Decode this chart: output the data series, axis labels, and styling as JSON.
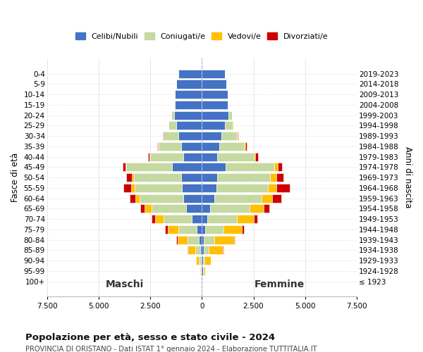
{
  "age_groups": [
    "0-4",
    "5-9",
    "10-14",
    "15-19",
    "20-24",
    "25-29",
    "30-34",
    "35-39",
    "40-44",
    "45-49",
    "50-54",
    "55-59",
    "60-64",
    "65-69",
    "70-74",
    "75-79",
    "80-84",
    "85-89",
    "90-94",
    "95-99",
    "100+"
  ],
  "birth_years": [
    "2019-2023",
    "2014-2018",
    "2009-2013",
    "2004-2008",
    "1999-2003",
    "1994-1998",
    "1989-1993",
    "1984-1988",
    "1979-1983",
    "1974-1978",
    "1969-1973",
    "1964-1968",
    "1959-1963",
    "1954-1958",
    "1949-1953",
    "1944-1948",
    "1939-1943",
    "1934-1938",
    "1929-1933",
    "1924-1928",
    "≤ 1923"
  ],
  "colors": {
    "celibi": "#4472c4",
    "coniugati": "#c5d9a0",
    "vedovi": "#ffc000",
    "divorziati": "#cc0000"
  },
  "maschi": {
    "celibi": [
      1150,
      1250,
      1300,
      1300,
      1350,
      1250,
      1150,
      1000,
      900,
      1450,
      1000,
      950,
      900,
      750,
      500,
      250,
      130,
      80,
      60,
      50,
      10
    ],
    "coniugati": [
      0,
      0,
      5,
      30,
      120,
      350,
      700,
      1100,
      1600,
      2200,
      2300,
      2300,
      2100,
      1700,
      1350,
      900,
      550,
      250,
      90,
      30,
      5
    ],
    "vedovi": [
      0,
      0,
      0,
      0,
      5,
      5,
      5,
      15,
      30,
      60,
      100,
      160,
      220,
      320,
      400,
      500,
      500,
      330,
      120,
      30,
      5
    ],
    "divorziati": [
      0,
      0,
      0,
      0,
      5,
      15,
      30,
      60,
      80,
      130,
      250,
      400,
      280,
      200,
      200,
      150,
      50,
      20,
      10,
      5,
      0
    ]
  },
  "femmine": {
    "celibi": [
      1100,
      1200,
      1250,
      1250,
      1300,
      1100,
      950,
      850,
      750,
      1150,
      750,
      700,
      600,
      400,
      250,
      150,
      100,
      80,
      60,
      50,
      10
    ],
    "coniugati": [
      0,
      0,
      5,
      40,
      150,
      400,
      750,
      1200,
      1750,
      2350,
      2550,
      2500,
      2300,
      1900,
      1450,
      900,
      500,
      250,
      80,
      30,
      5
    ],
    "vedovi": [
      0,
      0,
      0,
      0,
      5,
      10,
      20,
      50,
      100,
      180,
      300,
      400,
      500,
      700,
      800,
      900,
      950,
      700,
      300,
      80,
      10
    ],
    "divorziati": [
      0,
      0,
      0,
      0,
      5,
      20,
      40,
      80,
      130,
      200,
      350,
      650,
      450,
      280,
      200,
      100,
      50,
      20,
      10,
      5,
      0
    ]
  },
  "xlim": 7500,
  "xticks": [
    -7500,
    -5000,
    -2500,
    0,
    2500,
    5000,
    7500
  ],
  "xticklabels": [
    "7.500",
    "5.000",
    "2.500",
    "0",
    "2.500",
    "5.000",
    "7.500"
  ],
  "title_main": "Popolazione per età, sesso e stato civile - 2024",
  "title_sub": "PROVINCIA DI ORISTANO - Dati ISTAT 1° gennaio 2024 - Elaborazione TUTTITALIA.IT",
  "label_maschi": "Maschi",
  "label_femmine": "Femmine",
  "ylabel_left": "Fasce di età",
  "ylabel_right": "Anni di nascita",
  "legend_labels": [
    "Celibi/Nubili",
    "Coniugati/e",
    "Vedovi/e",
    "Divorziati/e"
  ]
}
